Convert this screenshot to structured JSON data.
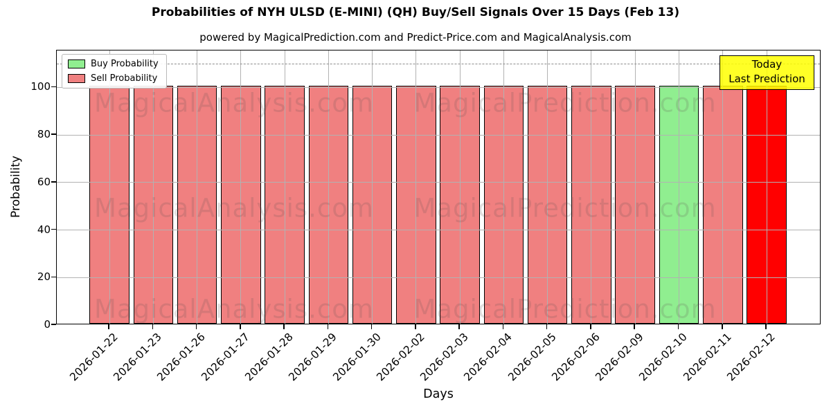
{
  "chart_data": {
    "type": "bar",
    "title": "Probabilities of NYH ULSD (E-MINI) (QH) Buy/Sell Signals Over 15 Days (Feb 13)",
    "subtitle": "powered by MagicalPrediction.com and Predict-Price.com and MagicalAnalysis.com",
    "xlabel": "Days",
    "ylabel": "Probability",
    "categories": [
      "2026-01-22",
      "2026-01-23",
      "2026-01-26",
      "2026-01-27",
      "2026-01-28",
      "2026-01-29",
      "2026-01-30",
      "2026-02-02",
      "2026-02-03",
      "2026-02-04",
      "2026-02-05",
      "2026-02-06",
      "2026-02-09",
      "2026-02-10",
      "2026-02-11",
      "2026-02-12"
    ],
    "values": [
      100,
      100,
      100,
      100,
      100,
      100,
      100,
      100,
      100,
      100,
      100,
      100,
      100,
      100,
      100,
      100
    ],
    "bar_kinds": [
      "sell",
      "sell",
      "sell",
      "sell",
      "sell",
      "sell",
      "sell",
      "sell",
      "sell",
      "sell",
      "sell",
      "sell",
      "sell",
      "buy",
      "sell",
      "last_prediction"
    ],
    "yticks": [
      0,
      20,
      40,
      60,
      80,
      100
    ],
    "ylim": [
      0,
      115.5
    ],
    "dashed_line_y": 110,
    "grid": true,
    "colors": {
      "buy": "#90EE90",
      "sell": "#F08080",
      "last_prediction": "#FF0000",
      "annotation_bg": "#FFFF00",
      "bar_edge": "#000000",
      "grid": "#B2B2B2",
      "dashed_line": "#8A8A8A"
    },
    "legend": {
      "position": "upper left",
      "items": [
        {
          "label": "Buy Probability",
          "color": "#90EE90"
        },
        {
          "label": "Sell Probability",
          "color": "#F08080"
        }
      ]
    },
    "annotation": {
      "line1": "Today",
      "line2": "Last Prediction"
    },
    "watermarks": [
      "MagicalAnalysis.com",
      "MagicalPrediction.com"
    ]
  }
}
